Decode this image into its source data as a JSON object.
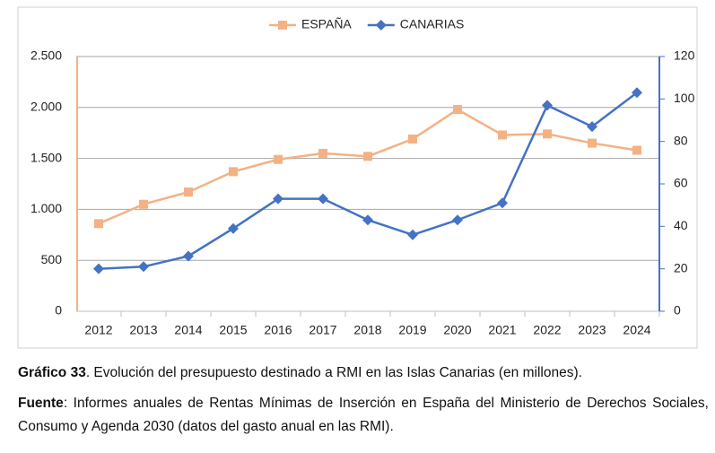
{
  "chart_data": {
    "type": "line",
    "categories": [
      "2012",
      "2013",
      "2014",
      "2015",
      "2016",
      "2017",
      "2018",
      "2019",
      "2020",
      "2021",
      "2022",
      "2023",
      "2024"
    ],
    "series": [
      {
        "name": "ESPAÑA",
        "color": "#f4b183",
        "marker": "square",
        "values": [
          860,
          1050,
          1170,
          1370,
          1490,
          1550,
          1520,
          1690,
          1980,
          1730,
          1740,
          1650,
          1580
        ]
      },
      {
        "name": "CANARIAS",
        "color": "#4472c4",
        "marker": "diamond",
        "axis": "y2",
        "values": [
          20,
          21,
          26,
          39,
          53,
          53,
          43,
          36,
          43,
          51,
          97,
          87,
          103
        ]
      }
    ],
    "ylim": [
      0,
      2500
    ],
    "yticks": [
      0,
      500,
      {
        "value": 1000,
        "label": "1.000"
      },
      {
        "value": 1500,
        "label": "1.500"
      },
      {
        "value": 2000,
        "label": "2.000"
      },
      {
        "value": 2500,
        "label": "2.500"
      }
    ],
    "y2lim": [
      0,
      120
    ],
    "y2ticks": [
      0,
      20,
      40,
      60,
      80,
      100,
      120
    ],
    "grid": true,
    "legend": "top"
  },
  "caption": {
    "label": "Gráfico 33",
    "text": ". Evolución del presupuesto destinado a RMI en las Islas Canarias (en millones)."
  },
  "source": {
    "label": "Fuente",
    "text": ": Informes anuales de Rentas Mínimas de Inserción en España del Ministerio de Derechos Sociales, Consumo y Agenda 2030 (datos del gasto anual en las RMI)."
  }
}
